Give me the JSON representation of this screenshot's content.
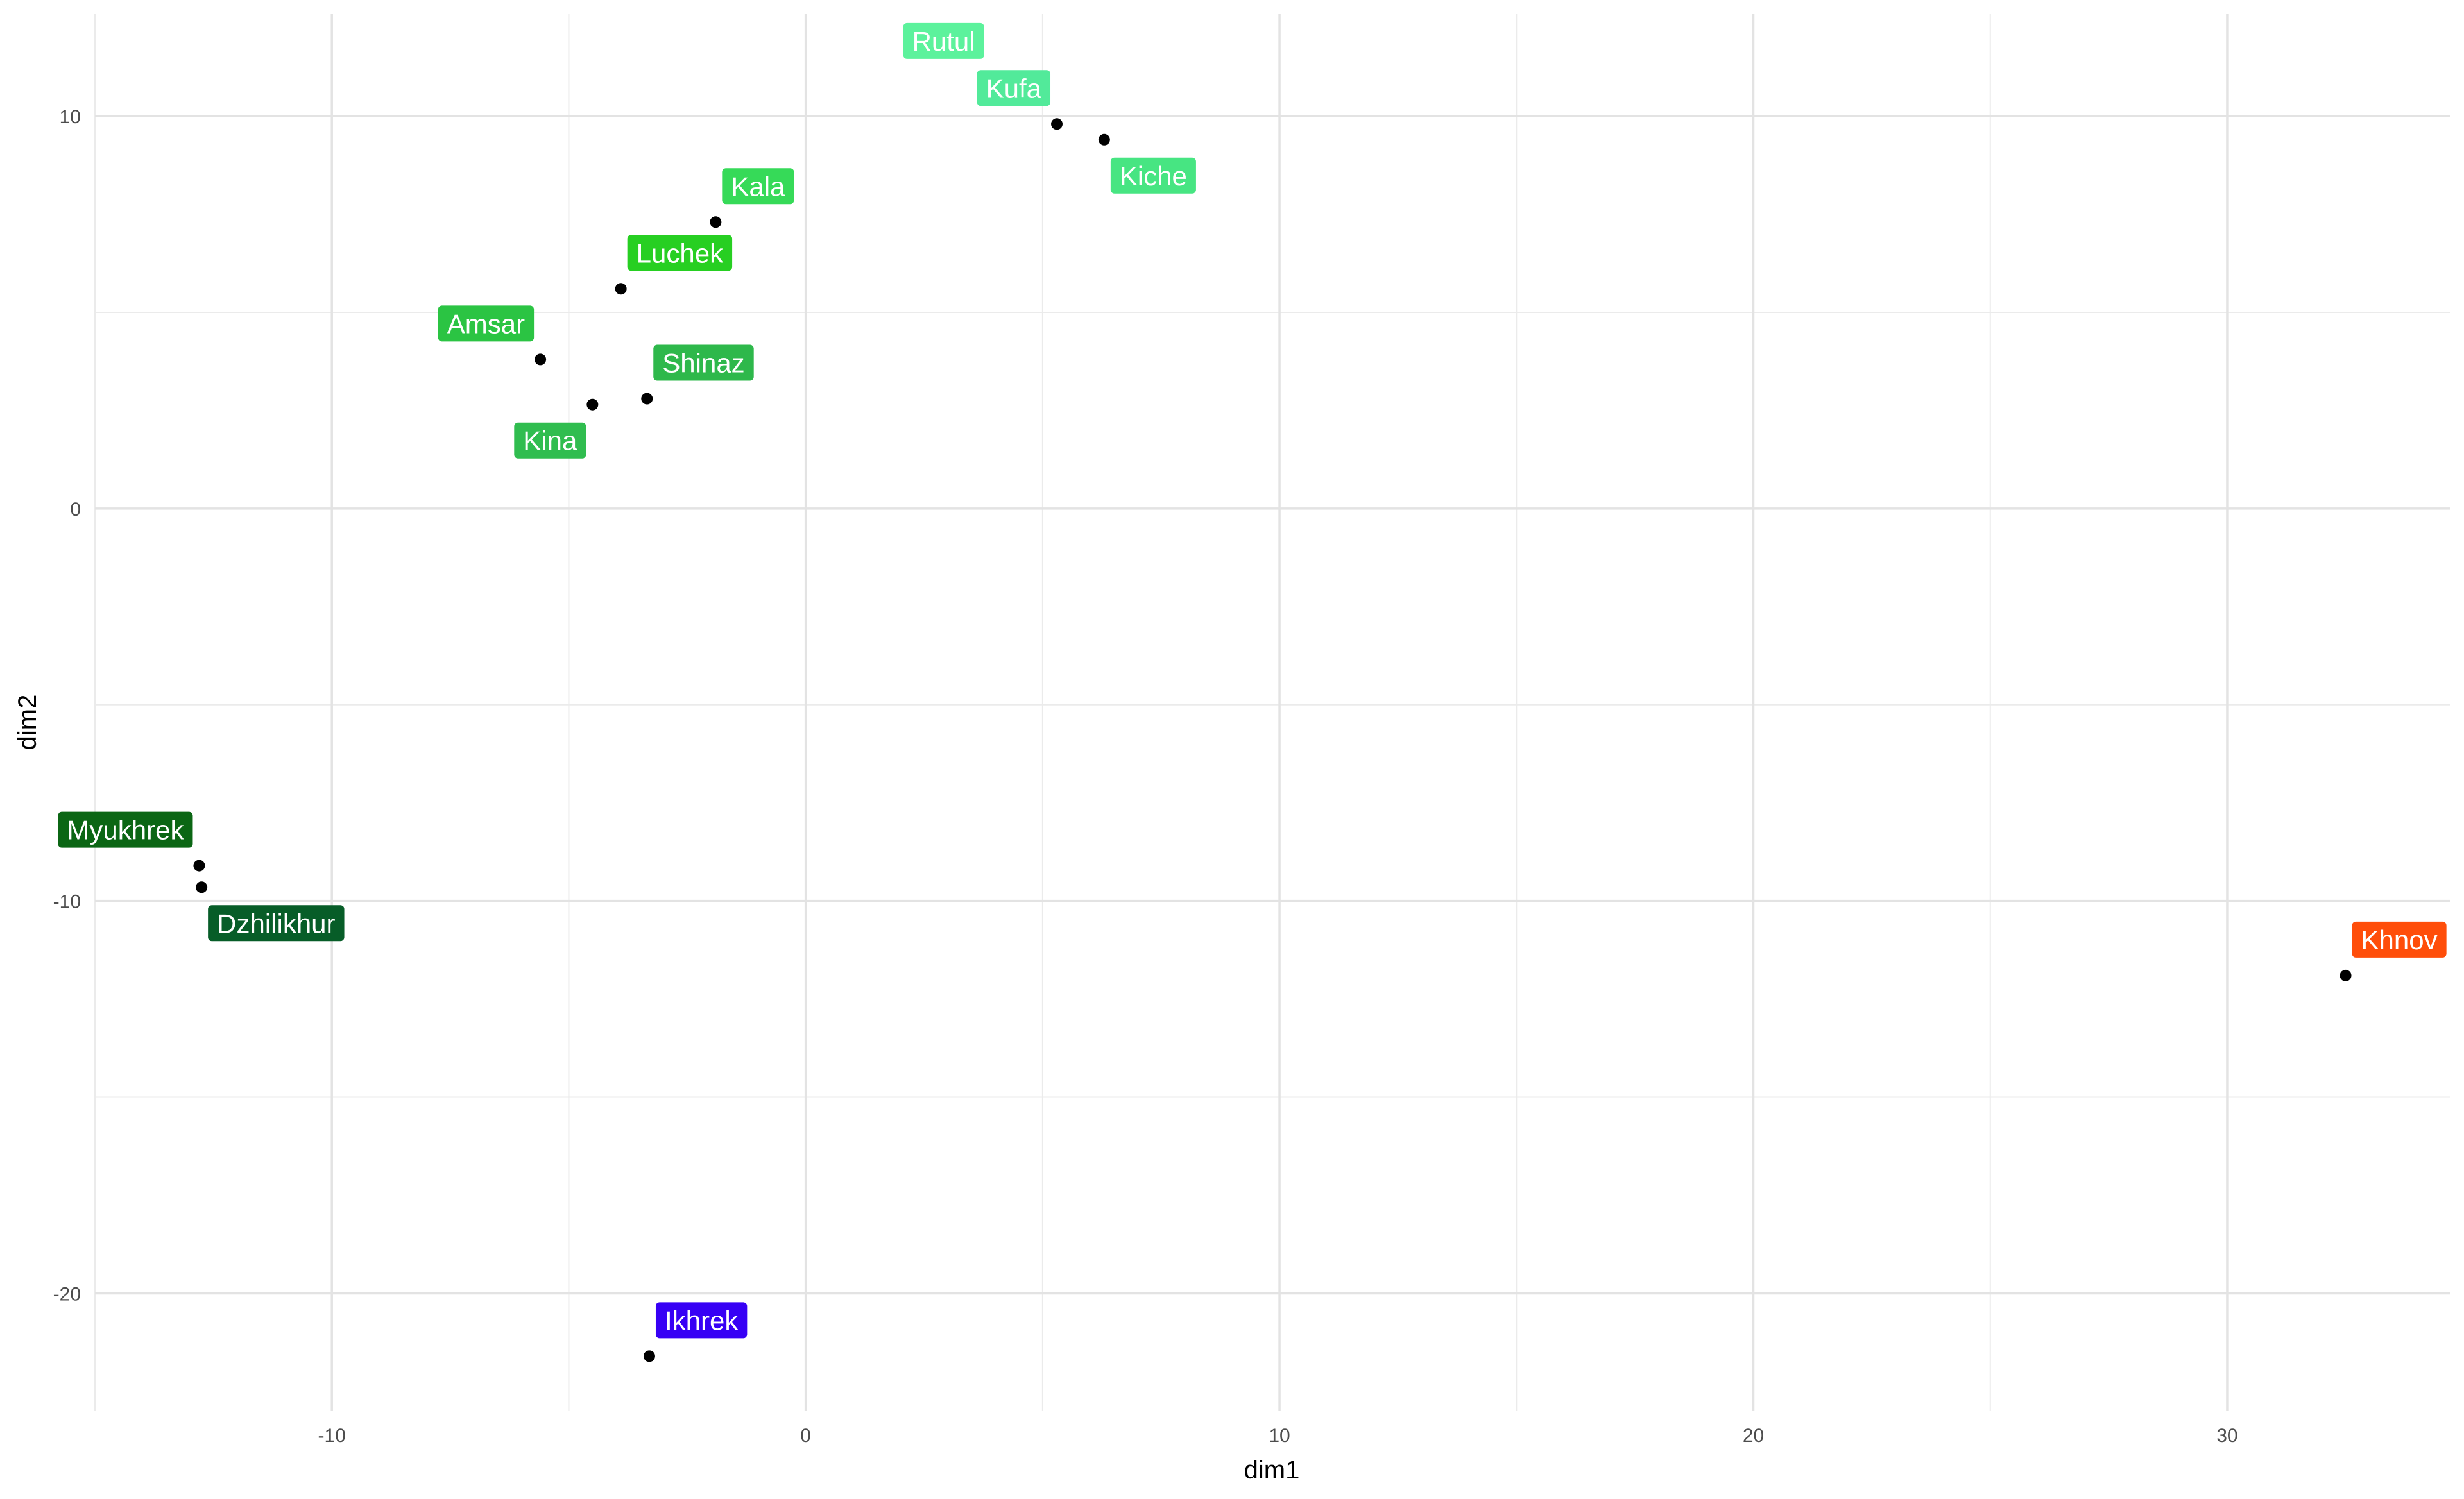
{
  "chart_data": {
    "type": "scatter",
    "title": "",
    "xlabel": "dim1",
    "ylabel": "dim2",
    "xlim": [
      -15,
      34.7
    ],
    "ylim": [
      -23,
      12.6
    ],
    "x_ticks": [
      -10,
      0,
      10,
      20,
      30
    ],
    "y_ticks": [
      -20,
      -10,
      0,
      10
    ],
    "grid": true,
    "legend": "none",
    "point_color": "#000000",
    "points": [
      {
        "label": "Rutul",
        "x": 3.9,
        "y": 11.0,
        "color": "#5cf29c",
        "label_pos": "top-left"
      },
      {
        "label": "Kufa",
        "x": 5.3,
        "y": 9.8,
        "color": "#52ea9a",
        "label_pos": "top-left"
      },
      {
        "label": "Kiche",
        "x": 6.3,
        "y": 9.4,
        "color": "#47e582",
        "label_pos": "bottom-right"
      },
      {
        "label": "Kala",
        "x": -1.9,
        "y": 7.3,
        "color": "#36da58",
        "label_pos": "top-right"
      },
      {
        "label": "Luchek",
        "x": -3.9,
        "y": 5.6,
        "color": "#27cf22",
        "label_pos": "top-right"
      },
      {
        "label": "Amsar",
        "x": -5.6,
        "y": 3.8,
        "color": "#2bc443",
        "label_pos": "top-left"
      },
      {
        "label": "Shinaz",
        "x": -3.35,
        "y": 2.8,
        "color": "#2eb84b",
        "label_pos": "top-right"
      },
      {
        "label": "Kina",
        "x": -4.5,
        "y": 2.65,
        "color": "#30bd4f",
        "label_pos": "bottom-left"
      },
      {
        "label": "Myukhrek",
        "x": -12.8,
        "y": -9.1,
        "color": "#0b6614",
        "label_pos": "top-left"
      },
      {
        "label": "Dzhilikhur",
        "x": -12.75,
        "y": -9.65,
        "color": "#075d28",
        "label_pos": "bottom-right"
      },
      {
        "label": "Khnov",
        "x": 32.5,
        "y": -11.9,
        "color": "#ff4e0a",
        "label_pos": "top-right"
      },
      {
        "label": "Ikhrek",
        "x": -3.3,
        "y": -21.6,
        "color": "#3700f5",
        "label_pos": "top-right"
      }
    ]
  }
}
